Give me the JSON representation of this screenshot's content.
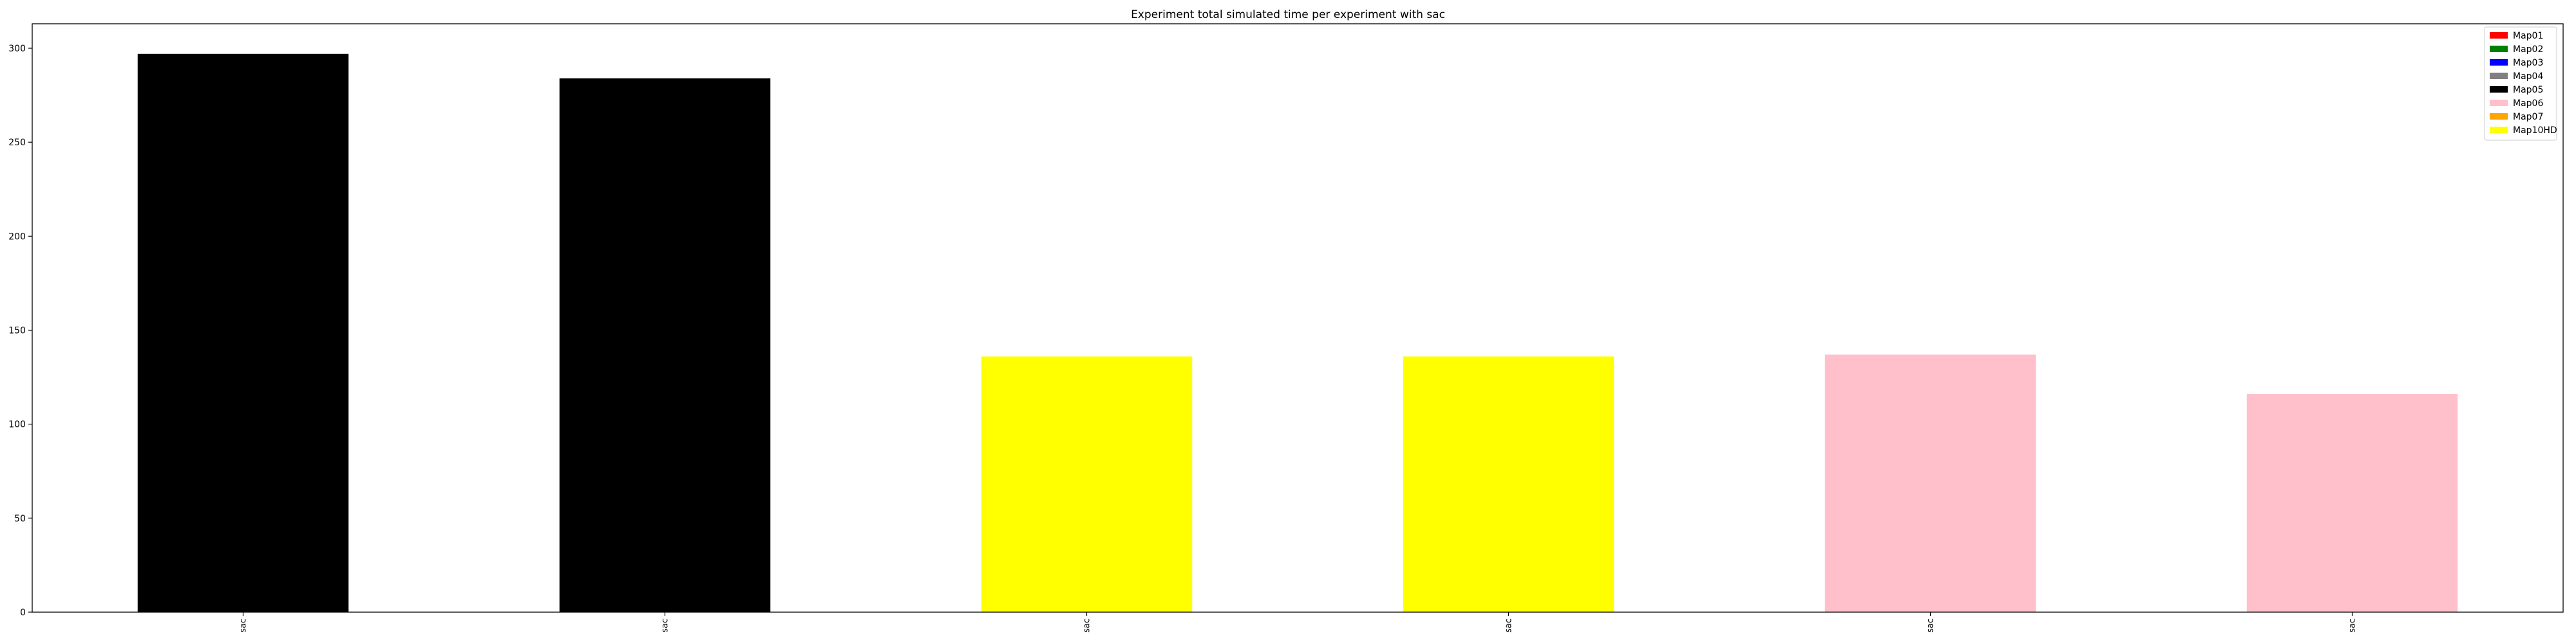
{
  "chart_data": {
    "type": "bar",
    "title": "Experiment total simulated time per experiment with sac",
    "xlabel": "",
    "ylabel": "",
    "categories": [
      "sac",
      "sac",
      "sac",
      "sac",
      "sac",
      "sac"
    ],
    "values": [
      297,
      284,
      136,
      136,
      137,
      116
    ],
    "bar_colors": [
      "#000000",
      "#000000",
      "#ffff00",
      "#ffff00",
      "#ffc0cb",
      "#ffc0cb"
    ],
    "ylim": [
      0,
      313
    ],
    "yticks": [
      0,
      50,
      100,
      150,
      200,
      250,
      300
    ],
    "grid": false,
    "legend": {
      "position": "top-right",
      "entries": [
        {
          "label": "Map01",
          "color": "#ff0000"
        },
        {
          "label": "Map02",
          "color": "#008000"
        },
        {
          "label": "Map03",
          "color": "#0000ff"
        },
        {
          "label": "Map04",
          "color": "#808080"
        },
        {
          "label": "Map05",
          "color": "#000000"
        },
        {
          "label": "Map06",
          "color": "#ffc0cb"
        },
        {
          "label": "Map07",
          "color": "#ffa500"
        },
        {
          "label": "Map10HD",
          "color": "#ffff00"
        }
      ]
    }
  }
}
